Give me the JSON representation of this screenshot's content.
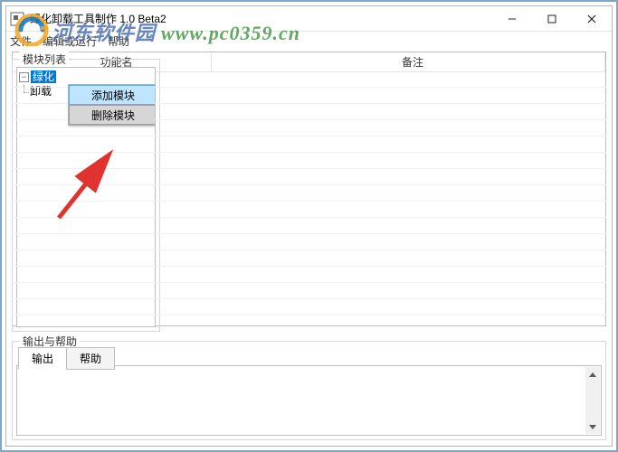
{
  "window": {
    "title": "绿化卸载工具制作 1.0 Beta2",
    "menu": {
      "file": "文件",
      "edit_run": "编辑或运行",
      "help": "帮助"
    }
  },
  "tree": {
    "label": "模块列表",
    "root_green": "绿化",
    "root_uninstall": "卸载"
  },
  "context_menu": {
    "add_module": "添加模块",
    "delete_module": "删除模块"
  },
  "grid": {
    "col_function": "功能名",
    "col_remark": "备注",
    "row_count": 15
  },
  "output": {
    "label": "输出与帮助",
    "tab_output": "输出",
    "tab_help": "帮助"
  },
  "watermark": {
    "site_name": "河东软件园",
    "url": "www.pc0359.cn"
  },
  "colors": {
    "frame_border": "#7fa8c7",
    "selection": "#0078d7",
    "menu_hover": "#bfe4ff",
    "arrow": "#e1322f"
  }
}
